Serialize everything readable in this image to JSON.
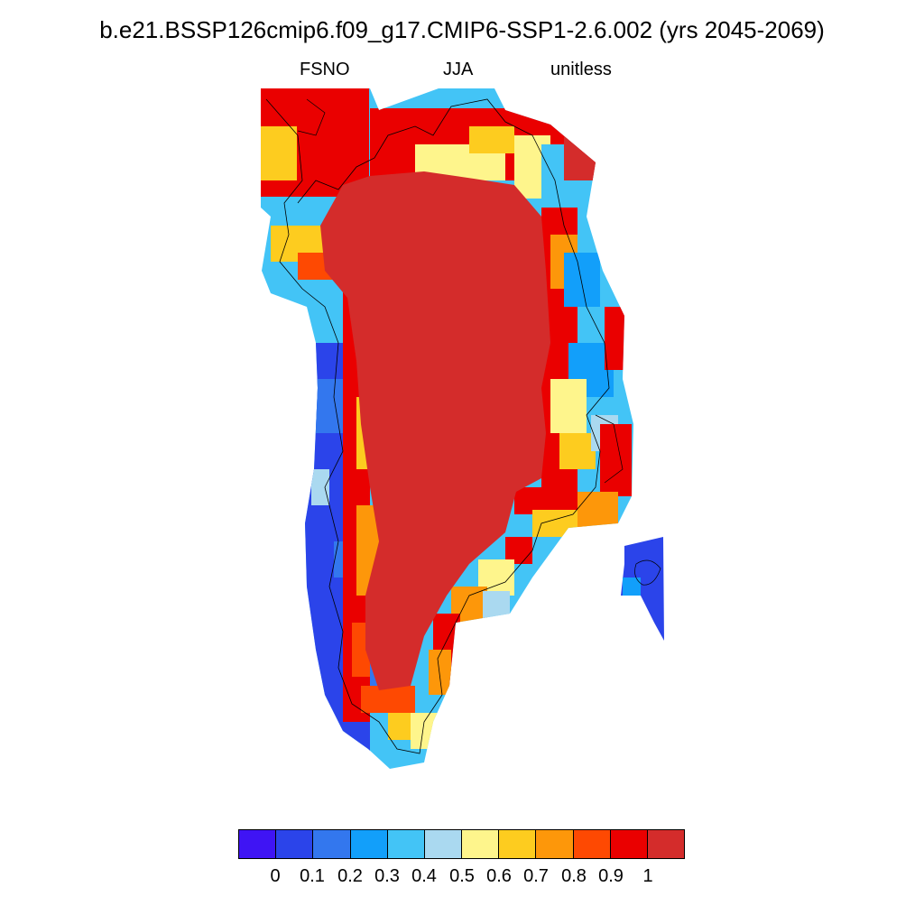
{
  "title": "b.e21.BSSP126cmip6.f09_g17.CMIP6-SSP1-2.6.002 (yrs 2045-2069)",
  "subtitle_left": "FSNO",
  "subtitle_center": "JJA",
  "subtitle_right": "unitless",
  "map": {
    "region": "Greenland",
    "variable": "FSNO",
    "season": "JJA"
  },
  "colorbar": {
    "colors": [
      "#3f14f4",
      "#2b44ea",
      "#3377ee",
      "#129ffa",
      "#43c4f6",
      "#aad9f0",
      "#fef58c",
      "#fdcc1f",
      "#fd970a",
      "#fe4902",
      "#ea0000",
      "#d42c2b"
    ],
    "labels": [
      "0",
      "0.1",
      "0.2",
      "0.3",
      "0.4",
      "0.5",
      "0.6",
      "0.7",
      "0.8",
      "0.9",
      "1"
    ]
  }
}
